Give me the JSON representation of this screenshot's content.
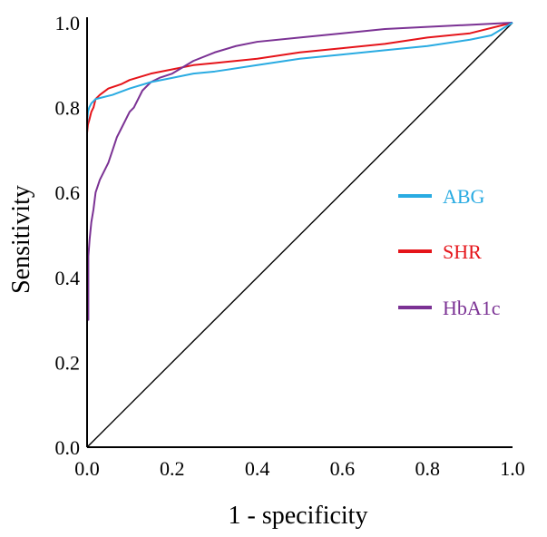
{
  "chart_data": {
    "type": "line",
    "title": "",
    "xlabel": "1 - specificity",
    "ylabel": "Sensitivity",
    "xlim": [
      0,
      1
    ],
    "ylim": [
      0,
      1
    ],
    "x_ticks": [
      "0.0",
      "0.2",
      "0.4",
      "0.6",
      "0.8",
      "1.0"
    ],
    "y_ticks": [
      "0.0",
      "0.2",
      "0.4",
      "0.6",
      "0.8",
      "1.0"
    ],
    "grid": false,
    "legend_position": "right-middle",
    "reference_line": {
      "x": [
        0,
        1
      ],
      "y": [
        0,
        1
      ],
      "color": "#000000"
    },
    "series": [
      {
        "name": "ABG",
        "color": "#29ABE2",
        "x": [
          0,
          0,
          0.002,
          0.005,
          0.01,
          0.02,
          0.04,
          0.06,
          0.1,
          0.15,
          0.2,
          0.25,
          0.3,
          0.4,
          0.5,
          0.6,
          0.7,
          0.8,
          0.9,
          0.95,
          1.0
        ],
        "y": [
          0,
          0.76,
          0.79,
          0.8,
          0.81,
          0.82,
          0.825,
          0.83,
          0.845,
          0.86,
          0.87,
          0.88,
          0.885,
          0.9,
          0.915,
          0.925,
          0.935,
          0.945,
          0.96,
          0.97,
          1.0
        ]
      },
      {
        "name": "SHR",
        "color": "#E5141A",
        "x": [
          0,
          0,
          0.002,
          0.005,
          0.01,
          0.015,
          0.02,
          0.03,
          0.05,
          0.08,
          0.1,
          0.15,
          0.2,
          0.25,
          0.3,
          0.4,
          0.5,
          0.6,
          0.7,
          0.8,
          0.9,
          1.0
        ],
        "y": [
          0,
          0.74,
          0.76,
          0.77,
          0.79,
          0.8,
          0.82,
          0.83,
          0.845,
          0.855,
          0.865,
          0.88,
          0.89,
          0.9,
          0.905,
          0.915,
          0.93,
          0.94,
          0.95,
          0.965,
          0.975,
          1.0
        ]
      },
      {
        "name": "HbA1c",
        "color": "#7B3294",
        "x": [
          0,
          0,
          0.003,
          0.003,
          0.006,
          0.01,
          0.015,
          0.02,
          0.03,
          0.04,
          0.05,
          0.06,
          0.07,
          0.08,
          0.09,
          0.1,
          0.11,
          0.13,
          0.15,
          0.17,
          0.2,
          0.25,
          0.3,
          0.35,
          0.4,
          0.5,
          0.6,
          0.7,
          0.8,
          0.9,
          1.0
        ],
        "y": [
          0,
          0.3,
          0.3,
          0.45,
          0.49,
          0.53,
          0.56,
          0.6,
          0.63,
          0.65,
          0.67,
          0.7,
          0.73,
          0.75,
          0.77,
          0.79,
          0.8,
          0.84,
          0.86,
          0.87,
          0.88,
          0.91,
          0.93,
          0.945,
          0.955,
          0.965,
          0.975,
          0.985,
          0.99,
          0.995,
          1.0
        ]
      }
    ]
  }
}
